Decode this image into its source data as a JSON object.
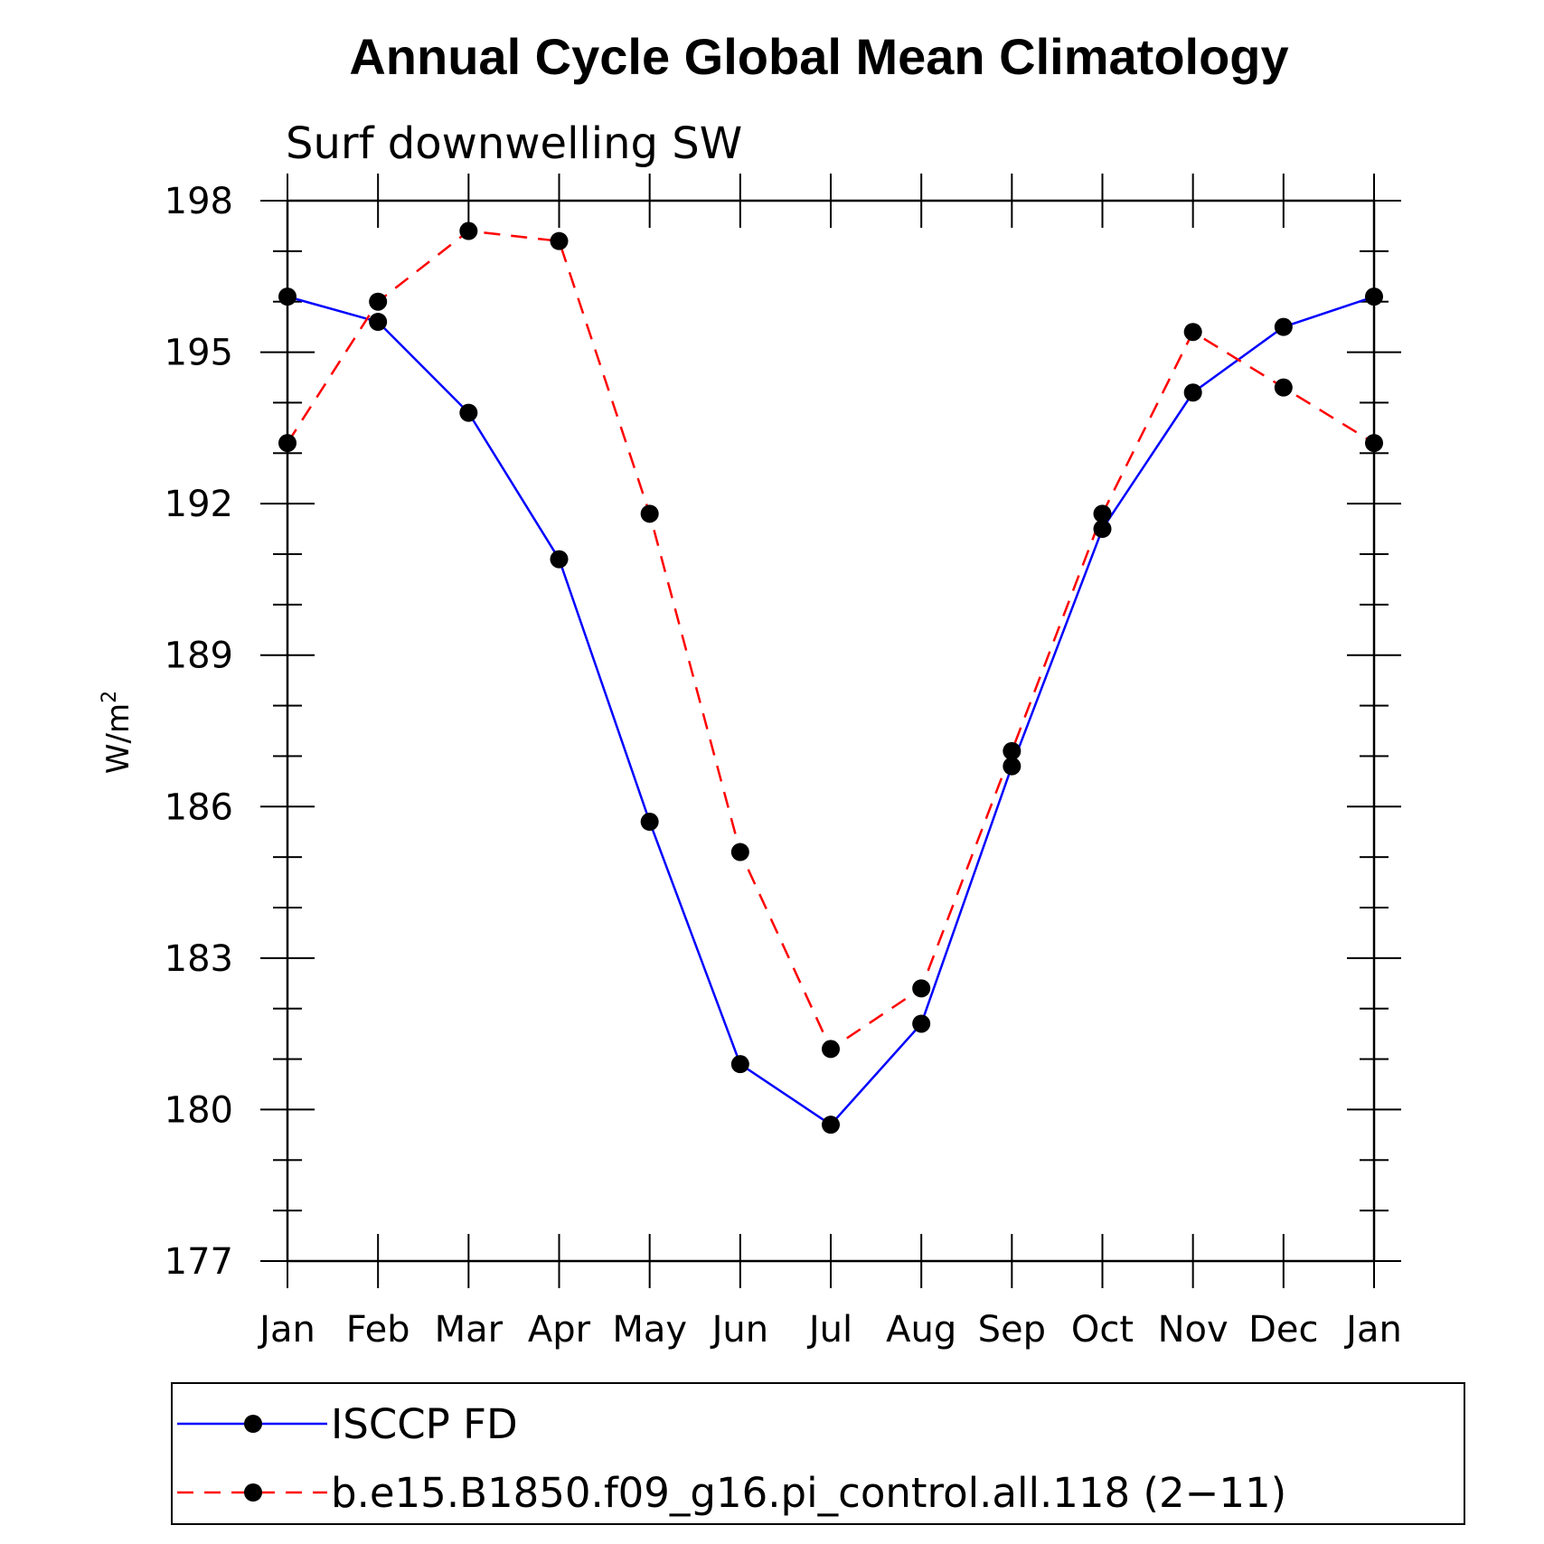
{
  "chart_data": {
    "type": "line",
    "title": "Annual Cycle Global Mean Climatology",
    "subtitle": "Surf downwelling SW",
    "ylabel": "W/m",
    "ylabel_superscript": "2",
    "xlabel": "",
    "categories": [
      "Jan",
      "Feb",
      "Mar",
      "Apr",
      "May",
      "Jun",
      "Jul",
      "Aug",
      "Sep",
      "Oct",
      "Nov",
      "Dec",
      "Jan"
    ],
    "ylim": [
      177,
      198
    ],
    "yticks": [
      "177",
      "180",
      "183",
      "186",
      "189",
      "192",
      "195",
      "198"
    ],
    "ytick_values": [
      177,
      180,
      183,
      186,
      189,
      192,
      195,
      198
    ],
    "grid": false,
    "legend_position": "bottom",
    "series": [
      {
        "name": "ISCCP FD",
        "color": "#0000ff",
        "dash": "solid",
        "marker": "filled-circle",
        "values": [
          196.1,
          195.6,
          193.8,
          190.9,
          185.7,
          180.9,
          179.7,
          181.7,
          186.8,
          191.5,
          194.2,
          195.5,
          196.1
        ]
      },
      {
        "name": "b.e15.B1850.f09_g16.pi_control.all.118 (2−11)",
        "color": "#ff0000",
        "dash": "dashed",
        "marker": "filled-circle",
        "values": [
          193.2,
          196.0,
          197.4,
          197.2,
          191.8,
          185.1,
          181.2,
          182.4,
          187.1,
          191.8,
          195.4,
          194.3,
          193.2
        ]
      }
    ]
  }
}
